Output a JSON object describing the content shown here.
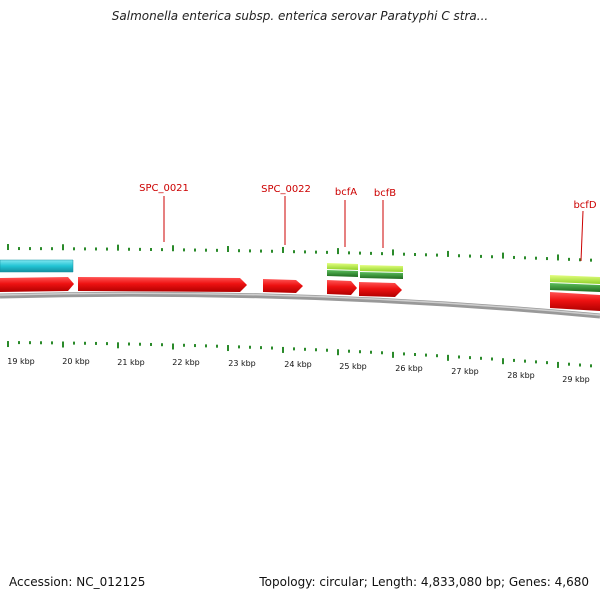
{
  "title": "Salmonella enterica subsp. enterica serovar Paratyphi C stra...",
  "footer": {
    "accession": "Accession: NC_012125",
    "topology": "Topology: circular; Length: 4,833,080 bp; Genes: 4,680"
  },
  "scale_labels": [
    "19 kbp",
    "20 kbp",
    "21 kbp",
    "22 kbp",
    "23 kbp",
    "24 kbp",
    "25 kbp",
    "26 kbp",
    "27 kbp",
    "28 kbp",
    "29 kbp"
  ],
  "gene_labels": [
    "SPC_0021",
    "SPC_0022",
    "bcfA",
    "bcfB",
    "bcfD"
  ],
  "colors": {
    "forward_gene": "#ee1111",
    "rna_feature": "#22c4d4",
    "light_green": "#a6e22e",
    "dark_green": "#2f8f2f",
    "backbone": "#8a8a8a",
    "tick": "#2a8a2a",
    "label_red": "#cc0000"
  }
}
